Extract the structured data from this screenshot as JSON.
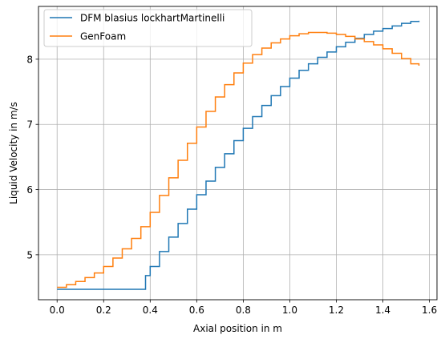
{
  "chart_data": {
    "type": "line",
    "xlabel": "Axial position in m",
    "ylabel": "Liquid Velocity in m/s",
    "xlim": [
      -0.08,
      1.6325
    ],
    "ylim": [
      4.31,
      8.81
    ],
    "xticks": [
      0.0,
      0.2,
      0.4,
      0.6,
      0.8,
      1.0,
      1.2,
      1.4,
      1.6
    ],
    "xtick_labels": [
      "0.0",
      "0.2",
      "0.4",
      "0.6",
      "0.8",
      "1.0",
      "1.2",
      "1.4",
      "1.6"
    ],
    "yticks": [
      5,
      6,
      7,
      8
    ],
    "ytick_labels": [
      "5",
      "6",
      "7",
      "8"
    ],
    "grid": true,
    "legend_position": "upper-left",
    "series": [
      {
        "name": "DFM blasius lockhartMartinelli",
        "color": "#1f77b4",
        "step": true,
        "x": [
          0.0,
          0.38,
          0.38,
          0.4,
          0.44,
          0.48,
          0.52,
          0.56,
          0.6,
          0.64,
          0.68,
          0.72,
          0.76,
          0.8,
          0.84,
          0.88,
          0.92,
          0.96,
          1.0,
          1.04,
          1.08,
          1.12,
          1.16,
          1.2,
          1.24,
          1.28,
          1.32,
          1.36,
          1.4,
          1.44,
          1.48,
          1.52,
          1.555
        ],
        "y": [
          4.47,
          4.47,
          4.68,
          4.82,
          5.05,
          5.27,
          5.48,
          5.7,
          5.92,
          6.13,
          6.34,
          6.55,
          6.75,
          6.94,
          7.12,
          7.29,
          7.44,
          7.58,
          7.71,
          7.83,
          7.93,
          8.03,
          8.11,
          8.19,
          8.26,
          8.32,
          8.38,
          8.43,
          8.47,
          8.51,
          8.55,
          8.58,
          8.59
        ]
      },
      {
        "name": "GenFoam",
        "color": "#ff7f0e",
        "step": true,
        "x": [
          0.0,
          0.04,
          0.08,
          0.12,
          0.16,
          0.2,
          0.24,
          0.28,
          0.32,
          0.36,
          0.4,
          0.44,
          0.48,
          0.52,
          0.56,
          0.6,
          0.64,
          0.68,
          0.72,
          0.76,
          0.8,
          0.84,
          0.88,
          0.92,
          0.96,
          1.0,
          1.04,
          1.08,
          1.12,
          1.16,
          1.2,
          1.24,
          1.28,
          1.32,
          1.36,
          1.4,
          1.44,
          1.48,
          1.52,
          1.555
        ],
        "y": [
          4.5,
          4.54,
          4.59,
          4.65,
          4.72,
          4.82,
          4.95,
          5.09,
          5.25,
          5.43,
          5.65,
          5.91,
          6.18,
          6.45,
          6.71,
          6.96,
          7.2,
          7.42,
          7.61,
          7.79,
          7.94,
          8.07,
          8.17,
          8.25,
          8.31,
          8.36,
          8.39,
          8.41,
          8.41,
          8.4,
          8.38,
          8.35,
          8.31,
          8.27,
          8.22,
          8.16,
          8.09,
          8.01,
          7.93,
          7.9
        ]
      }
    ]
  }
}
